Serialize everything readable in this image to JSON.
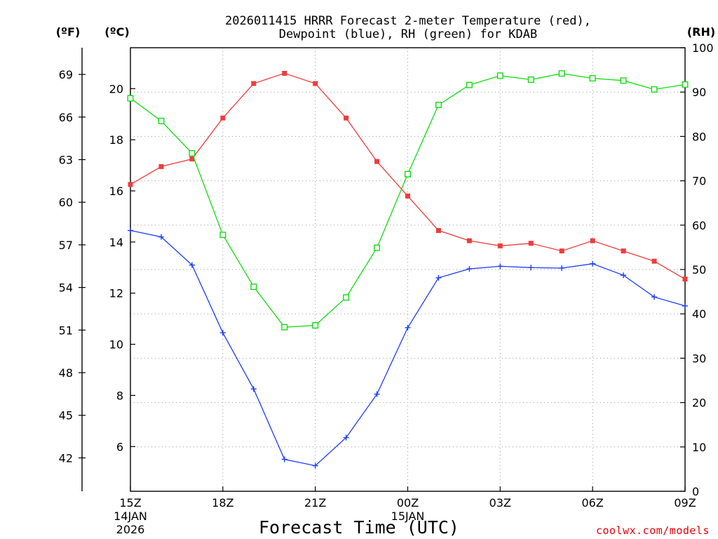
{
  "chart_data": {
    "type": "line",
    "title_line1": "2026011415 HRRR Forecast 2-meter Temperature (red),",
    "title_line2": "Dewpoint (blue), RH (green) for KDAB",
    "xlabel": "Forecast Time (UTC)",
    "credit": "coolwx.com/models",
    "units": {
      "fahrenheit": "(ºF)",
      "celsius": "(ºC)",
      "rh": "(RH)"
    },
    "x_hours": [
      0,
      1,
      2,
      3,
      4,
      5,
      6,
      7,
      8,
      9,
      10,
      11,
      12,
      13,
      14,
      15,
      16,
      17,
      18
    ],
    "xlim": [
      0,
      18
    ],
    "x_ticks": [
      {
        "hour": 0,
        "label": "15Z",
        "sub1": "14JAN",
        "sub2": "2026"
      },
      {
        "hour": 3,
        "label": "18Z",
        "sub1": "",
        "sub2": ""
      },
      {
        "hour": 6,
        "label": "21Z",
        "sub1": "",
        "sub2": ""
      },
      {
        "hour": 9,
        "label": "00Z",
        "sub1": "15JAN",
        "sub2": ""
      },
      {
        "hour": 12,
        "label": "03Z",
        "sub1": "",
        "sub2": ""
      },
      {
        "hour": 15,
        "label": "06Z",
        "sub1": "",
        "sub2": ""
      },
      {
        "hour": 18,
        "label": "09Z",
        "sub1": "",
        "sub2": ""
      }
    ],
    "celsius_axis": {
      "ylim": [
        4.25,
        21.6
      ],
      "ticks": [
        6,
        8,
        10,
        12,
        14,
        16,
        18,
        20
      ]
    },
    "fahrenheit_ticks": [
      42,
      45,
      48,
      51,
      54,
      57,
      60,
      63,
      66,
      69
    ],
    "rh_axis": {
      "ylim": [
        0,
        100
      ],
      "ticks": [
        0,
        10,
        20,
        30,
        40,
        50,
        60,
        70,
        80,
        90,
        100
      ]
    },
    "series": [
      {
        "name": "2-meter Temperature",
        "axis": "celsius",
        "color": "#f03c3c",
        "marker": "filled-square",
        "values": [
          16.25,
          16.95,
          17.25,
          18.85,
          20.2,
          20.6,
          20.2,
          18.85,
          17.15,
          15.8,
          14.45,
          14.05,
          13.85,
          13.95,
          13.65,
          14.05,
          13.65,
          13.25,
          12.55
        ]
      },
      {
        "name": "Dewpoint",
        "axis": "celsius",
        "color": "#1e3cff",
        "marker": "plus",
        "values": [
          14.45,
          14.2,
          13.1,
          10.45,
          8.25,
          5.5,
          5.25,
          6.35,
          8.05,
          10.65,
          12.6,
          12.95,
          13.05,
          13.0,
          12.98,
          13.15,
          12.7,
          11.85,
          11.5
        ]
      },
      {
        "name": "RH",
        "axis": "rh",
        "color": "#14dc14",
        "marker": "hollow-square",
        "values": [
          88.6,
          83.5,
          76.2,
          57.8,
          46.1,
          37.0,
          37.4,
          43.7,
          54.9,
          71.5,
          87.1,
          91.6,
          93.7,
          92.8,
          94.2,
          93.1,
          92.6,
          90.6,
          91.7
        ]
      }
    ]
  }
}
